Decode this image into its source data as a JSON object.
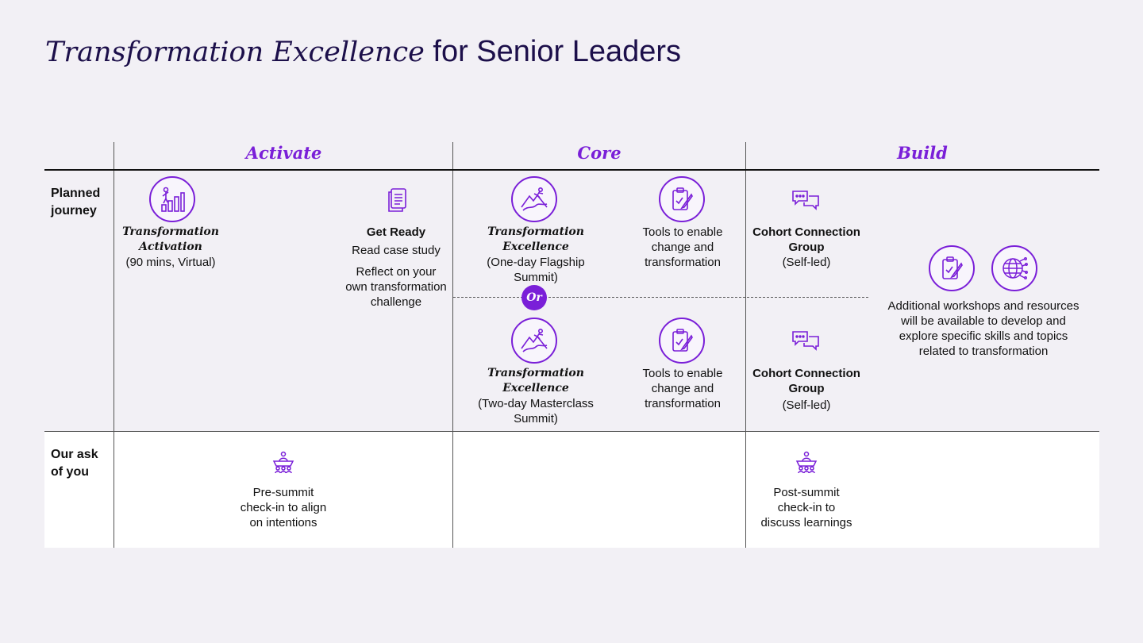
{
  "title": {
    "italic": "Transformation Excellence",
    "rest": " for Senior Leaders"
  },
  "phases": {
    "activate": "Activate",
    "core": "Core",
    "build": "Build"
  },
  "rows": {
    "planned": [
      "Planned",
      "journey"
    ],
    "ask": [
      "Our ask",
      "of you"
    ]
  },
  "activation": {
    "title": [
      "Transformation",
      "Activation"
    ],
    "sub": "(90 mins, Virtual)"
  },
  "get_ready": {
    "title": "Get Ready",
    "line1": "Read case study",
    "line2": [
      "Reflect on your",
      "own transformation",
      "challenge"
    ]
  },
  "flagship": {
    "title": "Transformation Excellence",
    "sub": [
      "(One-day Flagship",
      "Summit)"
    ]
  },
  "tools1": [
    "Tools to enable",
    "change and",
    "transformation"
  ],
  "or_label": "Or",
  "masterclass": {
    "title": "Transformation Excellence",
    "sub": [
      "(Two-day Masterclass",
      "Summit)"
    ]
  },
  "tools2": [
    "Tools to enable",
    "change and",
    "transformation"
  ],
  "cohort1": {
    "title": [
      "Cohort Connection",
      "Group"
    ],
    "sub": "(Self-led)"
  },
  "cohort2": {
    "title": [
      "Cohort Connection",
      "Group"
    ],
    "sub": "(Self-led)"
  },
  "additional": [
    "Additional workshops and resources",
    "will be available to develop and",
    "explore specific skills and topics",
    "related to transformation"
  ],
  "ask_pre": [
    "Pre-summit",
    "check-in to align",
    "on intentions"
  ],
  "ask_post": [
    "Post-summit",
    "check-in to",
    "discuss learnings"
  ],
  "icons": {
    "activation": "climber-growth-chart-icon",
    "get_ready": "document-icon",
    "flagship": "mountain-climber-icon",
    "tools": "clipboard-pencil-icon",
    "cohort": "chat-bubbles-icon",
    "additional_tools": "clipboard-pencil-icon",
    "additional_network": "globe-network-icon",
    "checkin": "meeting-table-icon"
  },
  "colors": {
    "accent": "#7a1fd8",
    "title": "#1c0f4a",
    "background": "#f2f0f5"
  }
}
